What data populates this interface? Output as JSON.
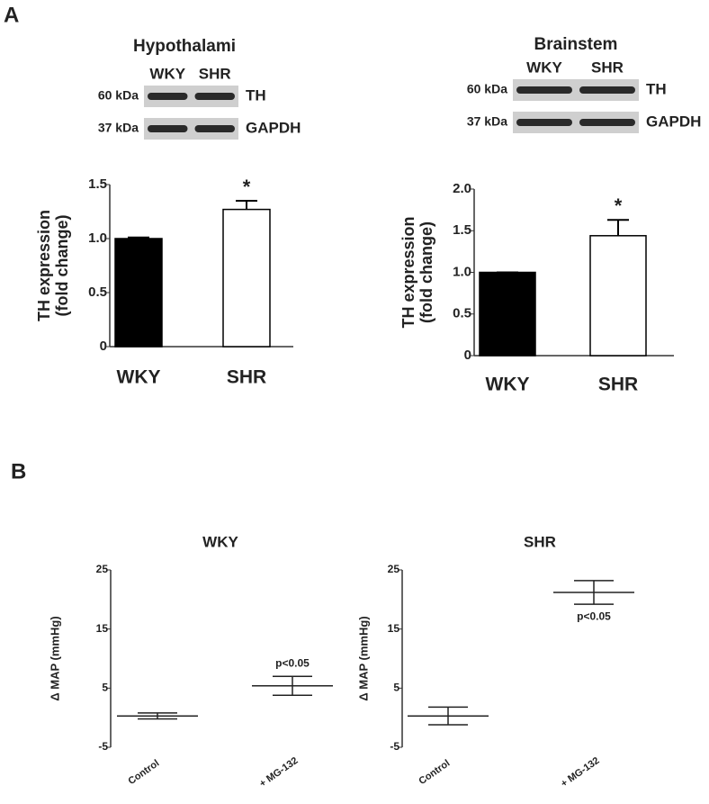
{
  "panels": [
    "A",
    "B"
  ],
  "chart_data": [
    {
      "type": "bar",
      "title": "Hypothalami",
      "blot": {
        "lanes": [
          "WKY",
          "SHR"
        ],
        "rows": [
          {
            "size": "60 kDa",
            "protein": "TH"
          },
          {
            "size": "37 kDa",
            "protein": "GAPDH"
          }
        ]
      },
      "ylabel": [
        "TH expression",
        "(fold change)"
      ],
      "categories": [
        "WKY",
        "SHR"
      ],
      "values": [
        1.0,
        1.27
      ],
      "errors": [
        0.01,
        0.08
      ],
      "colors": [
        "#000000",
        "#ffffff"
      ],
      "annotations": [
        "*"
      ],
      "ylim": [
        0,
        1.5
      ],
      "yticks": [
        0,
        0.5,
        {
          "value": 1,
          "label": "1.0"
        },
        1.5
      ]
    },
    {
      "type": "bar",
      "title": "Brainstem",
      "blot": {
        "lanes": [
          "WKY",
          "SHR"
        ],
        "rows": [
          {
            "size": "60 kDa",
            "protein": "TH"
          },
          {
            "size": "37 kDa",
            "protein": "GAPDH"
          }
        ]
      },
      "ylabel": [
        "TH expression",
        "(fold change)"
      ],
      "categories": [
        "WKY",
        "SHR"
      ],
      "values": [
        1.0,
        1.44
      ],
      "errors": [
        0.0,
        0.19
      ],
      "colors": [
        "#000000",
        "#ffffff"
      ],
      "annotations": [
        "*"
      ],
      "ylim": [
        0,
        2
      ],
      "yticks": [
        0,
        0.5,
        {
          "value": 1,
          "label": "1.0"
        },
        1.5,
        {
          "value": 2,
          "label": "2.0"
        }
      ]
    },
    {
      "type": "errorbar",
      "title": "WKY",
      "ylabel": [
        "Δ MAP (mmHg)"
      ],
      "categories": [
        "Control",
        "+ MG-132"
      ],
      "values": [
        0.3,
        5.4
      ],
      "errors": [
        0.5,
        1.6
      ],
      "annotations": [
        "p<0.05"
      ],
      "ylim": [
        -5,
        25
      ],
      "yticks": [
        -5,
        5,
        15,
        25
      ]
    },
    {
      "type": "errorbar",
      "title": "SHR",
      "ylabel": [
        "Δ MAP (mmHg)"
      ],
      "categories": [
        "Control",
        "+ MG-132"
      ],
      "values": [
        0.3,
        21.2
      ],
      "errors": [
        1.5,
        2.0
      ],
      "annotations": [
        "p<0.05"
      ],
      "ylim": [
        -5,
        25
      ],
      "yticks": [
        -5,
        5,
        15,
        25
      ]
    }
  ]
}
